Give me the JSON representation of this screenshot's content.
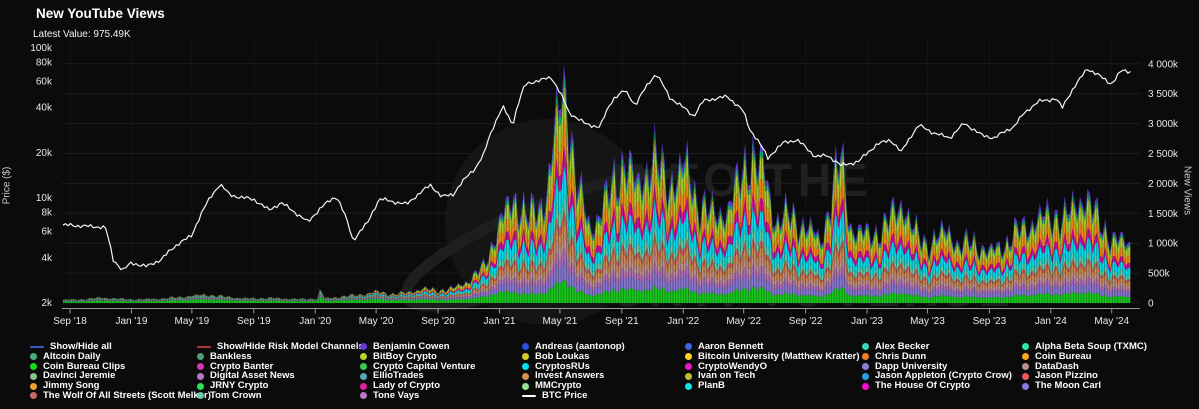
{
  "header": {
    "title": "New YouTube Views",
    "latest_value": "Latest Value: 975.49K"
  },
  "axes": {
    "left": {
      "title": "Price ($)",
      "ticks": [
        {
          "label": "100k",
          "value": 100000
        },
        {
          "label": "80k",
          "value": 80000
        },
        {
          "label": "60k",
          "value": 60000
        },
        {
          "label": "40k",
          "value": 40000
        },
        {
          "label": "20k",
          "value": 20000
        },
        {
          "label": "10k",
          "value": 10000
        },
        {
          "label": "8k",
          "value": 8000
        },
        {
          "label": "6k",
          "value": 6000
        },
        {
          "label": "4k",
          "value": 4000
        },
        {
          "label": "2k",
          "value": 2000
        }
      ]
    },
    "right": {
      "title": "New Views",
      "ticks": [
        {
          "label": "4 000k",
          "value": 4000
        },
        {
          "label": "3 500k",
          "value": 3500
        },
        {
          "label": "3 000k",
          "value": 3000
        },
        {
          "label": "2 500k",
          "value": 2500
        },
        {
          "label": "2 000k",
          "value": 2000
        },
        {
          "label": "1 500k",
          "value": 1500
        },
        {
          "label": "1 000k",
          "value": 1000
        },
        {
          "label": "500k",
          "value": 500
        },
        {
          "label": "0",
          "value": 0
        }
      ]
    },
    "x": {
      "ticks": [
        {
          "label": "Sep '18",
          "date": "2018-09-01"
        },
        {
          "label": "Jan '19",
          "date": "2019-01-01"
        },
        {
          "label": "May '19",
          "date": "2019-05-01"
        },
        {
          "label": "Sep '19",
          "date": "2019-09-01"
        },
        {
          "label": "Jan '20",
          "date": "2020-01-01"
        },
        {
          "label": "May '20",
          "date": "2020-05-01"
        },
        {
          "label": "Sep '20",
          "date": "2020-09-01"
        },
        {
          "label": "Jan '21",
          "date": "2021-01-01"
        },
        {
          "label": "May '21",
          "date": "2021-05-01"
        },
        {
          "label": "Sep '21",
          "date": "2021-09-01"
        },
        {
          "label": "Jan '22",
          "date": "2022-01-01"
        },
        {
          "label": "May '22",
          "date": "2022-05-01"
        },
        {
          "label": "Sep '22",
          "date": "2022-09-01"
        },
        {
          "label": "Jan '23",
          "date": "2023-01-01"
        },
        {
          "label": "May '23",
          "date": "2023-05-01"
        },
        {
          "label": "Sep '23",
          "date": "2023-09-01"
        },
        {
          "label": "Jan '24",
          "date": "2024-01-01"
        },
        {
          "label": "May '24",
          "date": "2024-05-01"
        }
      ]
    }
  },
  "watermark": {
    "line1": "INTO THE",
    "line2": "CRYPTOVERSE"
  },
  "legend": {
    "columns": [
      {
        "items": [
          {
            "label": "Show/Hide all",
            "color": "#3d5abf",
            "marker": "line"
          },
          {
            "label": "Altcoin Daily",
            "color": "#45b07e",
            "marker": "dot"
          },
          {
            "label": "Coin Bureau Clips",
            "color": "#16d916",
            "marker": "dot"
          },
          {
            "label": "Davinci Jeremie",
            "color": "#85c285",
            "marker": "dot"
          },
          {
            "label": "Jimmy Song",
            "color": "#f0a030",
            "marker": "dot"
          },
          {
            "label": "The Wolf Of All Streets (Scott Melker)",
            "color": "#c96a6a",
            "marker": "dot"
          }
        ]
      },
      {
        "items": [
          {
            "label": "Show/Hide Risk Model Channels",
            "color": "#b03a3a",
            "marker": "line"
          },
          {
            "label": "Bankless",
            "color": "#49a27a",
            "marker": "dot"
          },
          {
            "label": "Crypto Banter",
            "color": "#d633b5",
            "marker": "dot"
          },
          {
            "label": "Digital Asset News",
            "color": "#b678c9",
            "marker": "dot"
          },
          {
            "label": "JRNY Crypto",
            "color": "#2fe055",
            "marker": "dot"
          },
          {
            "label": "Tom Crown",
            "color": "#6fc9a3",
            "marker": "dot"
          }
        ]
      },
      {
        "items": [
          {
            "label": "Benjamin Cowen",
            "color": "#6a35e0",
            "marker": "dot"
          },
          {
            "label": "BitBoy Crypto",
            "color": "#bcd22e",
            "marker": "dot"
          },
          {
            "label": "Crypto Capital Venture",
            "color": "#3ecb52",
            "marker": "dot"
          },
          {
            "label": "EllioTrades",
            "color": "#56aab8",
            "marker": "dot"
          },
          {
            "label": "Lady of Crypto",
            "color": "#e0219a",
            "marker": "dot"
          },
          {
            "label": "Tone Vays",
            "color": "#bb78c9",
            "marker": "dot"
          }
        ]
      },
      {
        "items": [
          {
            "label": "Andreas (aantonop)",
            "color": "#2b50e0",
            "marker": "dot"
          },
          {
            "label": "Bob Loukas",
            "color": "#d4cb2a",
            "marker": "dot"
          },
          {
            "label": "CryptosRUs",
            "color": "#00e0f0",
            "marker": "dot"
          },
          {
            "label": "Invest Answers",
            "color": "#cf9052",
            "marker": "dot"
          },
          {
            "label": "MMCrypto",
            "color": "#8fe08f",
            "marker": "dot"
          },
          {
            "label": "BTC Price",
            "color": "#ffffff",
            "marker": "line"
          }
        ]
      },
      {
        "items": [
          {
            "label": "Aaron Bennett",
            "color": "#3b66e8",
            "marker": "dot"
          },
          {
            "label": "Bitcoin University (Matthew Kratter)",
            "color": "#ffd21e",
            "marker": "dot"
          },
          {
            "label": "CryptoWendyO",
            "color": "#f015c8",
            "marker": "dot"
          },
          {
            "label": "Ivan on Tech",
            "color": "#b9c22e",
            "marker": "dot"
          },
          {
            "label": "PlanB",
            "color": "#10e8e8",
            "marker": "dot"
          }
        ]
      },
      {
        "items": [
          {
            "label": "Alex Becker",
            "color": "#35d9c0",
            "marker": "dot"
          },
          {
            "label": "Chris Dunn",
            "color": "#f28022",
            "marker": "dot"
          },
          {
            "label": "Dapp University",
            "color": "#8a7fd6",
            "marker": "dot"
          },
          {
            "label": "Jason Appleton (Crypto Crow)",
            "color": "#2f9de8",
            "marker": "dot"
          },
          {
            "label": "The House Of Crypto",
            "color": "#f20fd2",
            "marker": "dot"
          }
        ]
      },
      {
        "items": [
          {
            "label": "Alpha Beta Soup (TXMC)",
            "color": "#2ee8a0",
            "marker": "dot"
          },
          {
            "label": "Coin Bureau",
            "color": "#f5a623",
            "marker": "dot"
          },
          {
            "label": "DataDash",
            "color": "#bc8f8f",
            "marker": "dot"
          },
          {
            "label": "Jason Pizzino",
            "color": "#e85959",
            "marker": "dot"
          },
          {
            "label": "The Moon Carl",
            "color": "#8979e0",
            "marker": "dot"
          }
        ]
      }
    ]
  },
  "chart_data": {
    "type": "area",
    "stacked": true,
    "title": "New YouTube Views",
    "ylabel_left": "Price ($)",
    "ylabel_right": "New Views",
    "left_axis_scale": "log",
    "left_axis_range_usd": [
      2000,
      100000
    ],
    "right_axis_range_thousands": [
      0,
      4000
    ],
    "x_range": [
      "2018-08-18",
      "2024-06-10"
    ],
    "grid": "horizontal",
    "legend_position": "bottom",
    "latest_total_new_views": "975.49K",
    "total_new_views_k": {
      "dates": [
        "2018-09-01",
        "2018-10-01",
        "2018-11-01",
        "2018-12-01",
        "2019-01-01",
        "2019-02-01",
        "2019-03-01",
        "2019-04-01",
        "2019-05-01",
        "2019-06-01",
        "2019-07-01",
        "2019-08-01",
        "2019-09-01",
        "2019-10-01",
        "2019-11-01",
        "2019-12-01",
        "2020-01-05",
        "2020-01-12",
        "2020-01-19",
        "2020-02-01",
        "2020-03-01",
        "2020-04-01",
        "2020-05-01",
        "2020-06-01",
        "2020-07-01",
        "2020-08-01",
        "2020-09-01",
        "2020-10-01",
        "2020-11-01",
        "2020-12-01",
        "2021-01-01",
        "2021-02-01",
        "2021-03-01",
        "2021-04-01",
        "2021-05-12",
        "2021-06-01",
        "2021-07-01",
        "2021-08-01",
        "2021-09-07",
        "2021-10-01",
        "2021-11-01",
        "2021-12-01",
        "2022-01-08",
        "2022-02-01",
        "2022-03-01",
        "2022-04-01",
        "2022-05-12",
        "2022-06-15",
        "2022-07-01",
        "2022-08-01",
        "2022-09-01",
        "2022-10-01",
        "2022-11-10",
        "2022-12-01",
        "2023-01-01",
        "2023-02-01",
        "2023-03-12",
        "2023-04-01",
        "2023-05-01",
        "2023-06-15",
        "2023-07-01",
        "2023-08-01",
        "2023-09-01",
        "2023-10-01",
        "2023-11-01",
        "2023-12-01",
        "2024-01-10",
        "2024-02-01",
        "2024-03-08",
        "2024-04-01",
        "2024-05-01",
        "2024-06-10"
      ],
      "values": [
        55,
        65,
        90,
        75,
        60,
        65,
        72,
        95,
        120,
        140,
        110,
        85,
        75,
        85,
        75,
        65,
        70,
        255,
        75,
        85,
        115,
        140,
        190,
        150,
        170,
        240,
        210,
        245,
        380,
        620,
        1350,
        1800,
        1450,
        1750,
        3950,
        2100,
        1250,
        1750,
        2450,
        1950,
        2500,
        2050,
        2300,
        1700,
        1500,
        1600,
        2550,
        2150,
        1400,
        1500,
        1300,
        1050,
        2500,
        1250,
        1150,
        1250,
        1750,
        1250,
        1000,
        1250,
        950,
        1050,
        850,
        1000,
        1250,
        1400,
        1500,
        1450,
        1850,
        1450,
        1100,
        975.49
      ]
    },
    "btc_price_usd": {
      "name": "BTC Price",
      "dates": [
        "2018-09-01",
        "2018-10-01",
        "2018-11-10",
        "2018-11-25",
        "2018-12-15",
        "2019-01-01",
        "2019-02-01",
        "2019-03-01",
        "2019-04-05",
        "2019-05-01",
        "2019-06-26",
        "2019-07-15",
        "2019-08-01",
        "2019-09-01",
        "2019-10-01",
        "2019-10-26",
        "2019-11-20",
        "2019-12-18",
        "2020-01-15",
        "2020-02-12",
        "2020-03-16",
        "2020-04-15",
        "2020-05-08",
        "2020-06-01",
        "2020-07-01",
        "2020-08-17",
        "2020-09-08",
        "2020-10-01",
        "2020-11-15",
        "2020-12-01",
        "2021-01-08",
        "2021-01-27",
        "2021-02-21",
        "2021-03-13",
        "2021-04-14",
        "2021-05-19",
        "2021-06-22",
        "2021-07-20",
        "2021-08-15",
        "2021-09-07",
        "2021-09-28",
        "2021-11-08",
        "2021-12-04",
        "2022-01-22",
        "2022-02-10",
        "2022-03-29",
        "2022-04-30",
        "2022-05-12",
        "2022-06-18",
        "2022-07-20",
        "2022-08-15",
        "2022-09-20",
        "2022-10-15",
        "2022-11-10",
        "2022-12-15",
        "2023-01-21",
        "2023-02-16",
        "2023-03-10",
        "2023-04-14",
        "2023-05-15",
        "2023-06-15",
        "2023-07-13",
        "2023-08-18",
        "2023-09-11",
        "2023-10-20",
        "2023-11-10",
        "2023-12-08",
        "2024-01-12",
        "2024-01-23",
        "2024-02-28",
        "2024-03-13",
        "2024-04-18",
        "2024-05-01",
        "2024-05-21",
        "2024-06-10"
      ],
      "values": [
        6600,
        6500,
        6400,
        3900,
        3300,
        3700,
        3500,
        3900,
        5000,
        5600,
        12400,
        10500,
        10200,
        9800,
        8300,
        9300,
        8100,
        6900,
        8800,
        10300,
        5200,
        6900,
        9900,
        9500,
        9100,
        12200,
        10200,
        10600,
        16000,
        19500,
        40500,
        30500,
        57000,
        60000,
        63500,
        37000,
        31000,
        29800,
        46000,
        52000,
        41500,
        67500,
        47000,
        35000,
        44500,
        47500,
        38000,
        29000,
        18500,
        23500,
        24400,
        18900,
        19200,
        16500,
        17500,
        22800,
        24500,
        20200,
        30500,
        27000,
        25200,
        31400,
        26100,
        25200,
        30000,
        37000,
        44000,
        46000,
        39500,
        62000,
        73000,
        61500,
        57500,
        71000,
        69500
      ]
    },
    "stacked_channel_count": 36,
    "render_bands_bottom_to_top": [
      {
        "color": "#19c81e",
        "f": [
          0.46,
          0.1
        ]
      },
      {
        "color": "#8577cf",
        "f": [
          0.1,
          0.08
        ]
      },
      {
        "color": "#b06fb8",
        "f": [
          0.03,
          0.05
        ]
      },
      {
        "color": "#bc8f8f",
        "f": [
          0.04,
          0.06
        ]
      },
      {
        "color": "#cd8a4e",
        "f": [
          0.04,
          0.06
        ]
      },
      {
        "color": "#c95c5c",
        "f": [
          0.02,
          0.04
        ]
      },
      {
        "color": "#5fc9a5",
        "f": [
          0.1,
          0.07
        ]
      },
      {
        "color": "#00dcec",
        "f": [
          0.08,
          0.12
        ]
      },
      {
        "color": "#cc0f9e",
        "f": [
          0.03,
          0.08
        ]
      },
      {
        "color": "#f08a18",
        "f": [
          0.04,
          0.12
        ]
      },
      {
        "color": "#abc82e",
        "f": [
          0.05,
          0.14
        ]
      },
      {
        "color": "#12b37e",
        "f": [
          0.005,
          0.04
        ]
      },
      {
        "color": "#6a3de0",
        "f": [
          0.005,
          0.04
        ]
      }
    ],
    "colors": {
      "background": "#0b0b0c",
      "grid": "#1d1d1d",
      "axis": "#9a9a9a",
      "btc_line": "#f5f5f5",
      "text": "#e8e8e8"
    }
  }
}
